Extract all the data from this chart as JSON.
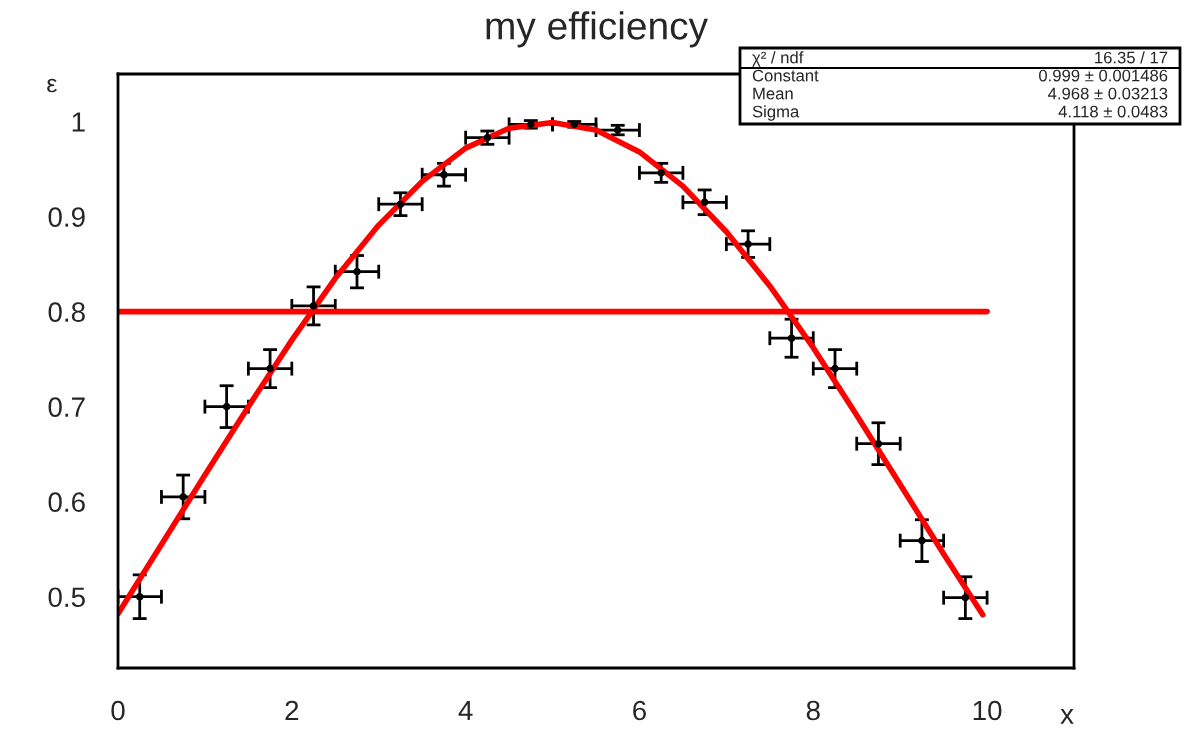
{
  "chart_data": {
    "type": "scatter",
    "title": "my efficiency",
    "xlabel": "x",
    "ylabel": "ε",
    "xlim": [
      0,
      11
    ],
    "ylim": [
      0.425,
      1.05
    ],
    "xticks": [
      0,
      2,
      4,
      6,
      8,
      10
    ],
    "yticks": [
      0.5,
      0.6,
      0.7,
      0.8,
      0.9,
      1
    ],
    "grid": false,
    "series": [
      {
        "color": "#000000",
        "x": [
          0.25,
          0.75,
          1.25,
          1.75,
          2.25,
          2.75,
          3.25,
          3.75,
          4.25,
          4.75,
          5.25,
          5.75,
          6.25,
          6.75,
          7.25,
          7.75,
          8.25,
          8.75,
          9.25,
          9.75
        ],
        "values": [
          0.5,
          0.605,
          0.7,
          0.74,
          0.806,
          0.842,
          0.913,
          0.944,
          0.983,
          0.997,
          0.997,
          0.991,
          0.946,
          0.915,
          0.871,
          0.772,
          0.74,
          0.661,
          0.559,
          0.499
        ],
        "errors": [
          0.023,
          0.023,
          0.022,
          0.02,
          0.02,
          0.017,
          0.012,
          0.012,
          0.007,
          0.004,
          0.003,
          0.005,
          0.01,
          0.013,
          0.014,
          0.02,
          0.02,
          0.022,
          0.022,
          0.022
        ],
        "xerrors": [
          0.25,
          0.25,
          0.25,
          0.25,
          0.25,
          0.25,
          0.25,
          0.25,
          0.25,
          0.25,
          0.25,
          0.25,
          0.25,
          0.25,
          0.25,
          0.25,
          0.25,
          0.25,
          0.25,
          0.25
        ]
      },
      {
        "type": "line",
        "color": "#ff0000",
        "x": [
          0,
          0.5,
          1,
          1.5,
          2,
          2.5,
          3,
          3.5,
          4,
          4.5,
          5,
          5.5,
          6,
          6.5,
          7,
          7.5,
          8,
          8.5,
          9,
          9.5,
          9.95
        ],
        "values": [
          0.482,
          0.555,
          0.628,
          0.7,
          0.77,
          0.835,
          0.891,
          0.937,
          0.972,
          0.993,
          0.999,
          0.991,
          0.968,
          0.932,
          0.884,
          0.827,
          0.762,
          0.691,
          0.618,
          0.545,
          0.481
        ]
      },
      {
        "type": "line",
        "color": "#ff0000",
        "x": [
          0,
          10
        ],
        "values": [
          0.8,
          0.8
        ]
      }
    ],
    "annotations": [
      "χ² / ndf",
      "16.35 / 17",
      "Constant",
      "0.999 ± 0.001486",
      "Mean",
      "4.968 ± 0.03213",
      "Sigma",
      "4.118 ± 0.0483"
    ]
  }
}
